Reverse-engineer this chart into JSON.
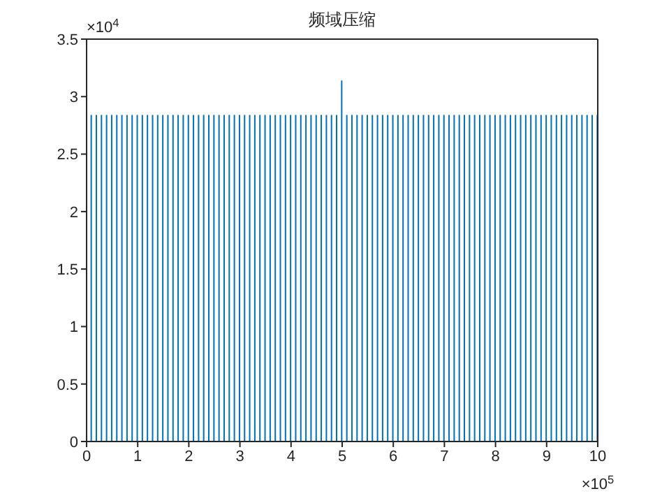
{
  "chart_data": {
    "type": "bar",
    "title": "频域压缩",
    "annotations": [
      "×10$^{4}$",
      "×10$^{5}$"
    ],
    "color": "#0072bd",
    "x": [
      0.1,
      0.2,
      0.3,
      0.4,
      0.5,
      0.6,
      0.7,
      0.8,
      0.9,
      1,
      1.1,
      1.2,
      1.3,
      1.4,
      1.5,
      1.6,
      1.7,
      1.8,
      1.9,
      2,
      2.1,
      2.2,
      2.3,
      2.4,
      2.5,
      2.6,
      2.7,
      2.8,
      2.9,
      3,
      3.1,
      3.2,
      3.3,
      3.4,
      3.5,
      3.6,
      3.7,
      3.8,
      3.9,
      4,
      4.1,
      4.2,
      4.3,
      4.4,
      4.5,
      4.6,
      4.7,
      4.8,
      4.9,
      5,
      5.1,
      5.2,
      5.3,
      5.4,
      5.5,
      5.6,
      5.7,
      5.8,
      5.9,
      6,
      6.1,
      6.2,
      6.3,
      6.4,
      6.5,
      6.6,
      6.7,
      6.8,
      6.9,
      7,
      7.1,
      7.2,
      7.3,
      7.4,
      7.5,
      7.6,
      7.7,
      7.8,
      7.9,
      8,
      8.1,
      8.2,
      8.3,
      8.4,
      8.5,
      8.6,
      8.7,
      8.8,
      8.9,
      9,
      9.1,
      9.2,
      9.3,
      9.4,
      9.5,
      9.6,
      9.7,
      9.8,
      9.9,
      10
    ],
    "values": [
      2.84,
      2.84,
      2.84,
      2.84,
      2.84,
      2.84,
      2.84,
      2.84,
      2.84,
      2.84,
      2.84,
      2.84,
      2.84,
      2.84,
      2.84,
      2.84,
      2.84,
      2.84,
      2.84,
      2.84,
      2.84,
      2.84,
      2.84,
      2.84,
      2.84,
      2.84,
      2.84,
      2.84,
      2.84,
      2.84,
      2.84,
      2.84,
      2.84,
      2.84,
      2.84,
      2.84,
      2.84,
      2.84,
      2.84,
      2.84,
      2.84,
      2.84,
      2.84,
      2.84,
      2.84,
      2.84,
      2.84,
      2.84,
      2.84,
      3.14,
      2.84,
      2.84,
      2.84,
      2.84,
      2.84,
      2.84,
      2.84,
      2.84,
      2.84,
      2.84,
      2.84,
      2.84,
      2.84,
      2.84,
      2.84,
      2.84,
      2.84,
      2.84,
      2.84,
      2.84,
      2.84,
      2.84,
      2.84,
      2.84,
      2.84,
      2.84,
      2.84,
      2.84,
      2.84,
      2.84,
      2.84,
      2.84,
      2.84,
      2.84,
      2.84,
      2.84,
      2.84,
      2.84,
      2.84,
      2.84,
      2.84,
      2.84,
      2.84,
      2.84,
      2.84,
      2.84,
      2.84,
      2.84,
      2.84,
      2.84
    ],
    "xlim": [
      0,
      10
    ],
    "xticks": [
      0,
      1,
      2,
      3,
      4,
      5,
      6,
      7,
      8,
      9,
      10
    ],
    "ylim": [
      0,
      3.5
    ],
    "yticks": [
      0,
      0.5,
      1,
      1.5,
      2,
      2.5,
      3,
      3.5
    ],
    "grid": false,
    "legend": false
  }
}
